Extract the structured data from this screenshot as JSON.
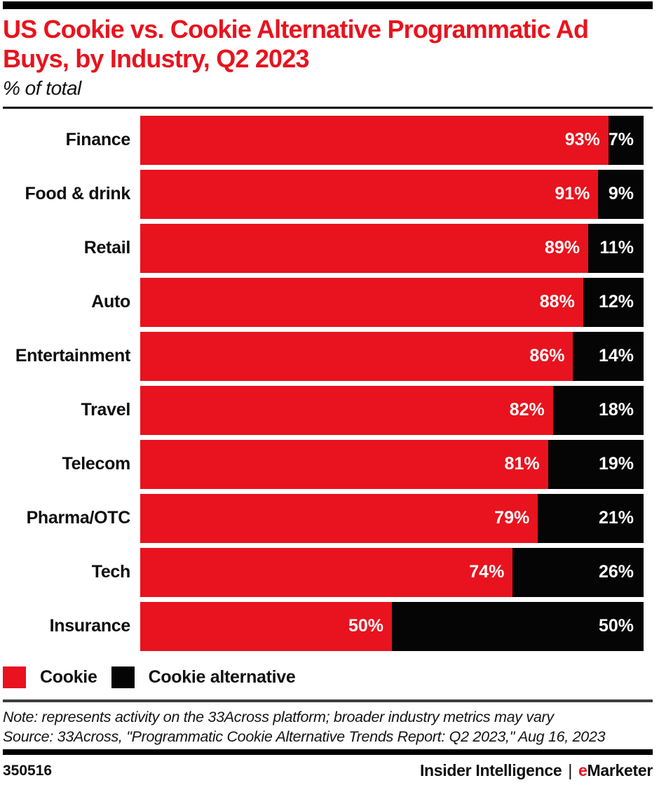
{
  "header": {
    "title_lines": [
      "US Cookie vs. Cookie Alternative Programmatic Ad",
      "Buys, by Industry, Q2 2023"
    ],
    "subtitle": "% of total"
  },
  "chart_data": {
    "type": "bar",
    "orientation": "horizontal",
    "stacked": true,
    "unit": "%",
    "title": "US Cookie vs. Cookie Alternative Programmatic Ad Buys, by Industry, Q2 2023",
    "subtitle": "% of total",
    "xlim": [
      0,
      100
    ],
    "grid": false,
    "legend_position": "bottom",
    "value_labels": "inside-end",
    "categories": [
      "Finance",
      "Food & drink",
      "Retail",
      "Auto",
      "Entertainment",
      "Travel",
      "Telecom",
      "Pharma/OTC",
      "Tech",
      "Insurance"
    ],
    "series": [
      {
        "name": "Cookie",
        "color": "#e8131e",
        "values": [
          93,
          91,
          89,
          88,
          86,
          82,
          81,
          79,
          74,
          50
        ]
      },
      {
        "name": "Cookie alternative",
        "color": "#050505",
        "values": [
          7,
          9,
          11,
          12,
          14,
          18,
          19,
          21,
          26,
          50
        ]
      }
    ]
  },
  "legend": {
    "items": [
      {
        "label": "Cookie",
        "color": "#e8131e"
      },
      {
        "label": "Cookie alternative",
        "color": "#050505"
      }
    ]
  },
  "notes": {
    "note": "Note: represents activity on the 33Across platform; broader industry metrics may vary",
    "source": "Source: 33Across, \"Programmatic Cookie Alternative Trends Report: Q2 2023,\" Aug 16, 2023"
  },
  "footer": {
    "chart_id": "350516",
    "brand_left": "Insider Intelligence",
    "brand_separator": "|",
    "brand_em_prefix": "e",
    "brand_em_rest": "Marketer"
  },
  "colors": {
    "accent_red": "#e8131e",
    "bar_black": "#050505",
    "rule_gray": "#3d3d3d"
  }
}
